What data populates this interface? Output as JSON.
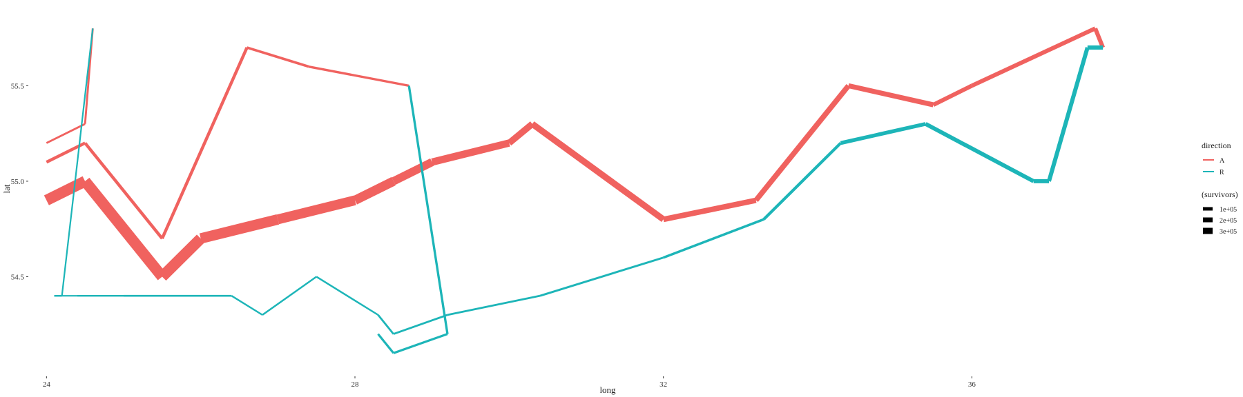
{
  "chart_data": {
    "type": "line",
    "title": "",
    "xlabel": "long",
    "ylabel": "lat",
    "xlim": [
      23.8,
      38.8
    ],
    "ylim": [
      54.0,
      55.92
    ],
    "x_ticks": [
      {
        "value": 24,
        "label": "24"
      },
      {
        "value": 28,
        "label": "28"
      },
      {
        "value": 32,
        "label": "32"
      },
      {
        "value": 36,
        "label": "36"
      }
    ],
    "y_ticks": [
      {
        "value": 54.5,
        "label": "54.5"
      },
      {
        "value": 55.0,
        "label": "55.0"
      },
      {
        "value": 55.5,
        "label": "55.5"
      }
    ],
    "grid": false,
    "legend_position": "right",
    "colors": {
      "A": "#F0625F",
      "R": "#1DB5B8"
    },
    "legend_direction": {
      "title": "direction",
      "items": [
        {
          "key": "A",
          "label": "A"
        },
        {
          "key": "R",
          "label": "R"
        }
      ]
    },
    "legend_survivors": {
      "title": "(survivors)",
      "items": [
        {
          "label": "1e+05",
          "value": 100000
        },
        {
          "label": "2e+05",
          "value": 200000
        },
        {
          "label": "3e+05",
          "value": 300000
        }
      ]
    },
    "series": [
      {
        "direction": "A",
        "points": [
          {
            "long": 24.0,
            "lat": 54.9,
            "survivors": 340000
          },
          {
            "long": 24.5,
            "lat": 55.0,
            "survivors": 340000
          },
          {
            "long": 25.5,
            "lat": 54.5,
            "survivors": 340000
          },
          {
            "long": 26.0,
            "lat": 54.7,
            "survivors": 320000
          },
          {
            "long": 27.0,
            "lat": 54.8,
            "survivors": 300000
          },
          {
            "long": 28.0,
            "lat": 54.9,
            "survivors": 280000
          },
          {
            "long": 28.5,
            "lat": 55.0,
            "survivors": 240000
          },
          {
            "long": 29.0,
            "lat": 55.1,
            "survivors": 210000
          },
          {
            "long": 30.0,
            "lat": 55.2,
            "survivors": 180000
          },
          {
            "long": 30.3,
            "lat": 55.3,
            "survivors": 175000
          },
          {
            "long": 32.0,
            "lat": 54.8,
            "survivors": 145000
          },
          {
            "long": 33.2,
            "lat": 54.9,
            "survivors": 140000
          },
          {
            "long": 34.4,
            "lat": 55.5,
            "survivors": 127100
          },
          {
            "long": 35.5,
            "lat": 55.4,
            "survivors": 100000
          },
          {
            "long": 36.0,
            "lat": 55.5,
            "survivors": 100000
          },
          {
            "long": 37.6,
            "lat": 55.8,
            "survivors": 100000
          },
          {
            "long": 37.7,
            "lat": 55.7,
            "survivors": 100000
          }
        ]
      },
      {
        "direction": "R",
        "points": [
          {
            "long": 37.7,
            "lat": 55.7,
            "survivors": 100000
          },
          {
            "long": 37.5,
            "lat": 55.7,
            "survivors": 98000
          },
          {
            "long": 37.0,
            "lat": 55.0,
            "survivors": 97000
          },
          {
            "long": 36.8,
            "lat": 55.0,
            "survivors": 96000
          },
          {
            "long": 35.4,
            "lat": 55.3,
            "survivors": 87000
          },
          {
            "long": 34.3,
            "lat": 55.2,
            "survivors": 55000
          },
          {
            "long": 33.3,
            "lat": 54.8,
            "survivors": 37000
          },
          {
            "long": 32.0,
            "lat": 54.6,
            "survivors": 24000
          },
          {
            "long": 30.4,
            "lat": 54.4,
            "survivors": 20000
          },
          {
            "long": 29.2,
            "lat": 54.3,
            "survivors": 20000
          },
          {
            "long": 28.5,
            "lat": 54.2,
            "survivors": 20000
          },
          {
            "long": 28.3,
            "lat": 54.3,
            "survivors": 20000
          }
        ]
      },
      {
        "direction": "R",
        "points": [
          {
            "long": 28.3,
            "lat": 54.3,
            "survivors": 12000
          },
          {
            "long": 27.5,
            "lat": 54.5,
            "survivors": 12000
          },
          {
            "long": 26.8,
            "lat": 54.3,
            "survivors": 12000
          },
          {
            "long": 26.4,
            "lat": 54.4,
            "survivors": 14000
          },
          {
            "long": 25.0,
            "lat": 54.4,
            "survivors": 8000
          },
          {
            "long": 24.4,
            "lat": 54.4,
            "survivors": 4000
          },
          {
            "long": 24.2,
            "lat": 54.4,
            "survivors": 10000
          },
          {
            "long": 24.1,
            "lat": 54.4,
            "survivors": 10000
          }
        ]
      },
      {
        "direction": "A",
        "points": [
          {
            "long": 24.0,
            "lat": 55.1,
            "survivors": 60000
          },
          {
            "long": 24.5,
            "lat": 55.2,
            "survivors": 60000
          },
          {
            "long": 25.5,
            "lat": 54.7,
            "survivors": 60000
          },
          {
            "long": 26.6,
            "lat": 55.7,
            "survivors": 40000
          },
          {
            "long": 27.4,
            "lat": 55.6,
            "survivors": 33000
          },
          {
            "long": 28.7,
            "lat": 55.5,
            "survivors": 33000
          }
        ]
      },
      {
        "direction": "R",
        "points": [
          {
            "long": 28.7,
            "lat": 55.5,
            "survivors": 33000
          },
          {
            "long": 29.2,
            "lat": 54.2,
            "survivors": 30000
          },
          {
            "long": 28.5,
            "lat": 54.1,
            "survivors": 30000
          },
          {
            "long": 28.3,
            "lat": 54.2,
            "survivors": 28000
          }
        ]
      },
      {
        "direction": "A",
        "points": [
          {
            "long": 24.0,
            "lat": 55.2,
            "survivors": 22000
          },
          {
            "long": 24.5,
            "lat": 55.3,
            "survivors": 22000
          },
          {
            "long": 24.6,
            "lat": 55.8,
            "survivors": 6000
          }
        ]
      },
      {
        "direction": "R",
        "points": [
          {
            "long": 24.6,
            "lat": 55.8,
            "survivors": 6000
          },
          {
            "long": 24.2,
            "lat": 54.4,
            "survivors": 6000
          },
          {
            "long": 24.1,
            "lat": 54.4,
            "survivors": 6000
          }
        ]
      }
    ]
  }
}
